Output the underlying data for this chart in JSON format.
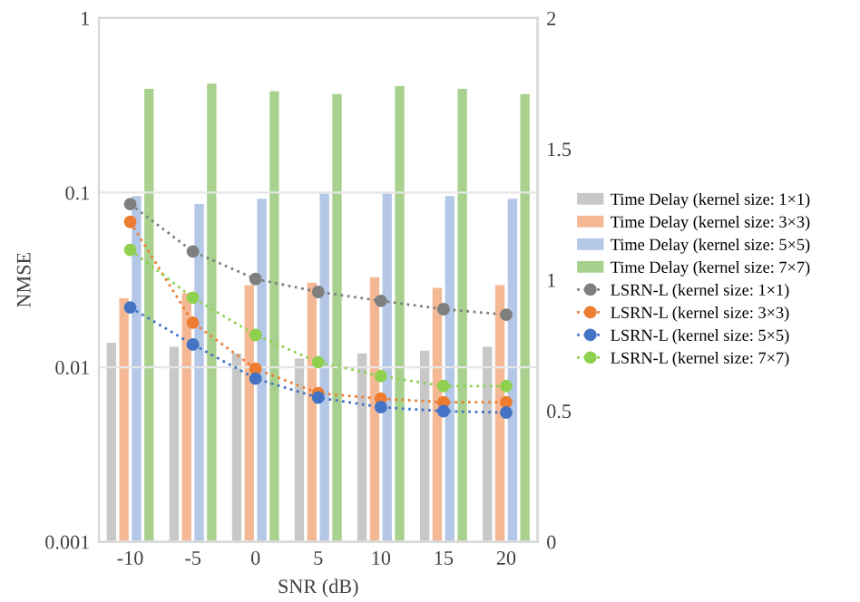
{
  "chart_data": {
    "type": "bar",
    "xlabel": "SNR (dB)",
    "ylabel": "NMSE",
    "categories": [
      "-10",
      "-5",
      "0",
      "5",
      "10",
      "15",
      "20"
    ],
    "series": [
      {
        "name": "Time Delay (kernel size: 1×1)",
        "color": "#c8c8c8",
        "axis": "y2",
        "values": [
          0.76,
          0.745,
          0.72,
          0.7,
          0.72,
          0.73,
          0.745
        ]
      },
      {
        "name": "Time Delay (kernel size: 3×3)",
        "color": "#f5b894",
        "axis": "y2",
        "values": [
          0.93,
          0.95,
          0.98,
          0.99,
          1.01,
          0.97,
          0.98
        ]
      },
      {
        "name": "Time Delay (kernel size: 5×5)",
        "color": "#b4c7e7",
        "axis": "y2",
        "values": [
          1.32,
          1.29,
          1.31,
          1.33,
          1.33,
          1.32,
          1.31
        ]
      },
      {
        "name": "Time Delay (kernel size: 7×7)",
        "color": "#a9d18e",
        "axis": "y2",
        "values": [
          1.73,
          1.75,
          1.72,
          1.71,
          1.74,
          1.73,
          1.71
        ]
      },
      {
        "name": "LSRN-L (kernel size: 1×1)",
        "color": "#7f7f7f",
        "type": "line",
        "axis": "y",
        "values": [
          0.086,
          0.046,
          0.032,
          0.027,
          0.024,
          0.0215,
          0.02
        ]
      },
      {
        "name": "LSRN-L (kernel size: 3×3)",
        "color": "#ed7d31",
        "type": "line",
        "axis": "y",
        "values": [
          0.068,
          0.018,
          0.0098,
          0.0071,
          0.0066,
          0.0063,
          0.0063
        ]
      },
      {
        "name": "LSRN-L (kernel size: 5×5)",
        "color": "#4472c4",
        "type": "line",
        "axis": "y",
        "values": [
          0.022,
          0.0135,
          0.0086,
          0.0067,
          0.0059,
          0.0056,
          0.0055
        ]
      },
      {
        "name": "LSRN-L (kernel size: 7×7)",
        "color": "#8fd14f",
        "type": "line",
        "axis": "y",
        "values": [
          0.047,
          0.025,
          0.0153,
          0.0107,
          0.0089,
          0.0078,
          0.0078
        ]
      }
    ],
    "log": "y",
    "ylim": [
      0.001,
      1
    ],
    "yticks": [
      0.001,
      0.01,
      0.1,
      1
    ],
    "y2lim": [
      0,
      2
    ],
    "y2ticks": [
      0,
      0.5,
      1,
      1.5,
      2
    ],
    "grid": "y",
    "legend": "right",
    "marker": "circle",
    "line_style": "dotted"
  }
}
